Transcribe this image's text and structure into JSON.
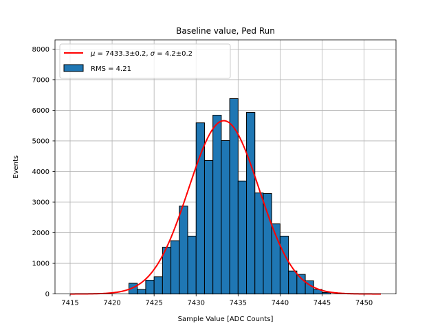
{
  "chart_data": {
    "type": "bar",
    "title": "Baseline value, Ped Run",
    "xlabel": "Sample Value [ADC Counts]",
    "ylabel": "Events",
    "xlim": [
      7413.2,
      7453.8
    ],
    "ylim": [
      0,
      8300
    ],
    "xticks": [
      7415,
      7420,
      7425,
      7430,
      7435,
      7440,
      7445,
      7450
    ],
    "yticks": [
      0,
      1000,
      2000,
      3000,
      4000,
      5000,
      6000,
      7000,
      8000
    ],
    "grid": true,
    "legend_position": "top-left",
    "bar_color": "#1f77b4",
    "fit_color": "#ff0000",
    "bin_width": 1.0,
    "histogram": {
      "name": "RMS = 4.21",
      "bins": [
        {
          "left": 7422.0,
          "value": 350
        },
        {
          "left": 7423.0,
          "value": 150
        },
        {
          "left": 7424.0,
          "value": 450
        },
        {
          "left": 7425.0,
          "value": 560
        },
        {
          "left": 7426.0,
          "value": 1530
        },
        {
          "left": 7427.0,
          "value": 1740
        },
        {
          "left": 7428.0,
          "value": 2870
        },
        {
          "left": 7429.0,
          "value": 1890
        },
        {
          "left": 7430.0,
          "value": 5590
        },
        {
          "left": 7431.0,
          "value": 4360
        },
        {
          "left": 7432.0,
          "value": 5840
        },
        {
          "left": 7433.0,
          "value": 5010
        },
        {
          "left": 7434.0,
          "value": 6380
        },
        {
          "left": 7435.0,
          "value": 3690
        },
        {
          "left": 7436.0,
          "value": 5930
        },
        {
          "left": 7437.0,
          "value": 3300
        },
        {
          "left": 7438.0,
          "value": 3280
        },
        {
          "left": 7439.0,
          "value": 2290
        },
        {
          "left": 7440.0,
          "value": 1890
        },
        {
          "left": 7441.0,
          "value": 750
        },
        {
          "left": 7442.0,
          "value": 640
        },
        {
          "left": 7443.0,
          "value": 430
        },
        {
          "left": 7444.0,
          "value": 150
        },
        {
          "left": 7445.0,
          "value": 50
        }
      ]
    },
    "fit": {
      "name": "μ = 7433.3±0.2, σ = 4.2±0.2",
      "mu_label": "μ",
      "sigma_label": "σ",
      "mu_text": "7433.3±0.2",
      "sigma_text": "4.2±0.2",
      "mu": 7433.3,
      "sigma": 4.2,
      "amplitude": 5660,
      "x_range": [
        7415,
        7452
      ]
    }
  }
}
